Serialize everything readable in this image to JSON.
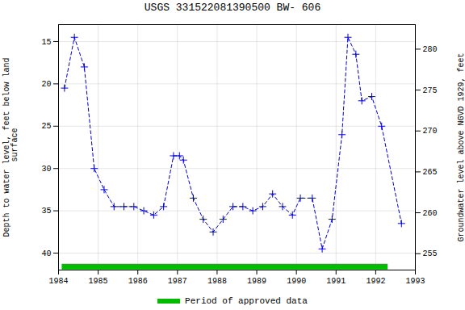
{
  "chart_data": {
    "type": "line",
    "title": "USGS 331522081390500 BW- 606",
    "ylabel": "Depth to water level, feet below land\n surface",
    "y2label": "Groundwater level above NGVD 1929, feet",
    "xlim": [
      1984,
      1993
    ],
    "xticks": [
      1984,
      1985,
      1986,
      1987,
      1988,
      1989,
      1990,
      1991,
      1992,
      1993
    ],
    "ylim": [
      42,
      13
    ],
    "yticks": [
      15,
      20,
      25,
      30,
      35,
      40
    ],
    "y2lim": [
      253,
      283
    ],
    "y2ticks": [
      255,
      260,
      265,
      270,
      275,
      280
    ],
    "grid": true,
    "legend": "bottom",
    "series": [
      {
        "type": "line",
        "color": "#0000cc",
        "marker": "plus",
        "line_style": "dashed",
        "x": [
          1984.15,
          1984.4,
          1984.65,
          1984.9,
          1985.15,
          1985.4,
          1985.65,
          1985.9,
          1986.15,
          1986.4,
          1986.65,
          1986.9,
          1987.05,
          1987.15,
          1987.4,
          1987.65,
          1987.9,
          1988.15,
          1988.4,
          1988.65,
          1988.9,
          1989.15,
          1989.4,
          1989.65,
          1989.9,
          1990.1,
          1990.4,
          1990.65,
          1990.9,
          1991.15,
          1991.3,
          1991.5,
          1991.65,
          1991.9,
          1992.15,
          1992.65
        ],
        "values": [
          20.5,
          14.5,
          18.0,
          30.0,
          32.5,
          34.5,
          34.5,
          34.5,
          35.0,
          35.5,
          34.5,
          28.5,
          28.5,
          29.0,
          33.5,
          36.0,
          37.5,
          36.0,
          34.5,
          34.5,
          35.0,
          34.5,
          33.0,
          34.5,
          35.5,
          33.5,
          33.5,
          39.5,
          36.0,
          26.0,
          14.5,
          16.5,
          22.0,
          21.5,
          25.0,
          36.5
        ]
      },
      {
        "name": "Period of approved data",
        "type": "line",
        "color": "#00bb00",
        "line_style": "solid",
        "x": [
          1984.08,
          1992.3
        ],
        "values": [
          41.6,
          41.6
        ]
      }
    ]
  }
}
